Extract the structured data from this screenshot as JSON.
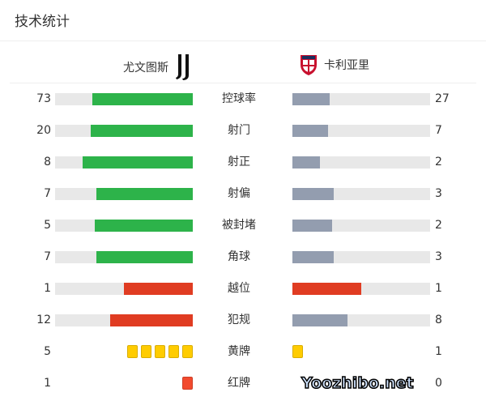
{
  "header": {
    "title": "技术统计"
  },
  "teams": {
    "home": {
      "name": "尤文图斯",
      "logo": "juventus-logo"
    },
    "away": {
      "name": "卡利亚里",
      "logo": "cagliari-logo"
    }
  },
  "colors": {
    "home_bar": "#2db34a",
    "away_bar": "#939daf",
    "highlight_bar": "#e03c22",
    "track": "#e8e8e8",
    "yellow_card": "#ffcc00",
    "red_card": "#f24a2e"
  },
  "stats": [
    {
      "label": "控球率",
      "home": 73,
      "away": 27
    },
    {
      "label": "射门",
      "home": 20,
      "away": 7
    },
    {
      "label": "射正",
      "home": 8,
      "away": 2
    },
    {
      "label": "射偏",
      "home": 7,
      "away": 3
    },
    {
      "label": "被封堵",
      "home": 5,
      "away": 2
    },
    {
      "label": "角球",
      "home": 7,
      "away": 3
    },
    {
      "label": "越位",
      "home": 1,
      "away": 1,
      "highlight": true
    },
    {
      "label": "犯规",
      "home": 12,
      "away": 8,
      "home_highlight": true
    }
  ],
  "cards": [
    {
      "label": "黄牌",
      "home": 5,
      "away": 1,
      "type": "yellow"
    },
    {
      "label": "红牌",
      "home": 1,
      "away": 0,
      "type": "red"
    }
  ],
  "watermark": "Yoozhibo.net"
}
